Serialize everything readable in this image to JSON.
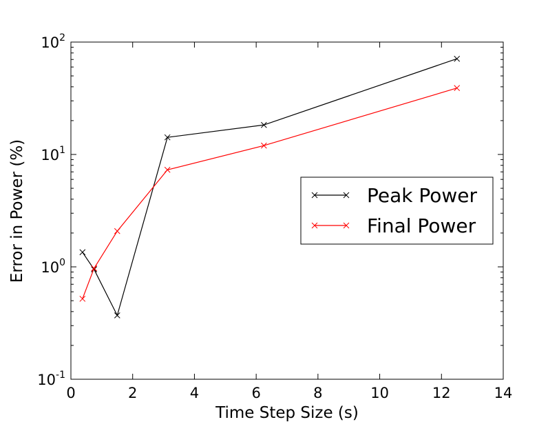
{
  "chart_data": {
    "type": "line",
    "title": "",
    "xlabel": "Time Step Size (s)",
    "ylabel": "Error in Power (%)",
    "xlim": [
      0,
      14
    ],
    "ylim": [
      0.1,
      100
    ],
    "yscale": "log",
    "x_ticks": [
      "0",
      "2",
      "4",
      "6",
      "8",
      "10",
      "12",
      "14"
    ],
    "y_ticks": [
      {
        "value": 0.1,
        "base": "10",
        "exp": "-1"
      },
      {
        "value": 1,
        "base": "10",
        "exp": "0"
      },
      {
        "value": 10,
        "base": "10",
        "exp": "1"
      },
      {
        "value": 100,
        "base": "10",
        "exp": "2"
      }
    ],
    "grid": false,
    "legend_position": "center-right",
    "series": [
      {
        "name": "Peak Power",
        "color": "#000000",
        "marker": "x",
        "x": [
          0.375,
          0.75,
          1.5,
          3.125,
          6.25,
          12.5
        ],
        "y": [
          1.35,
          0.95,
          0.37,
          14.2,
          18.3,
          71.0
        ]
      },
      {
        "name": "Final Power",
        "color": "#ff0000",
        "marker": "x",
        "x": [
          0.375,
          0.75,
          1.5,
          3.125,
          6.25,
          12.5
        ],
        "y": [
          0.52,
          0.97,
          2.08,
          7.3,
          12.0,
          39.0
        ]
      }
    ]
  }
}
